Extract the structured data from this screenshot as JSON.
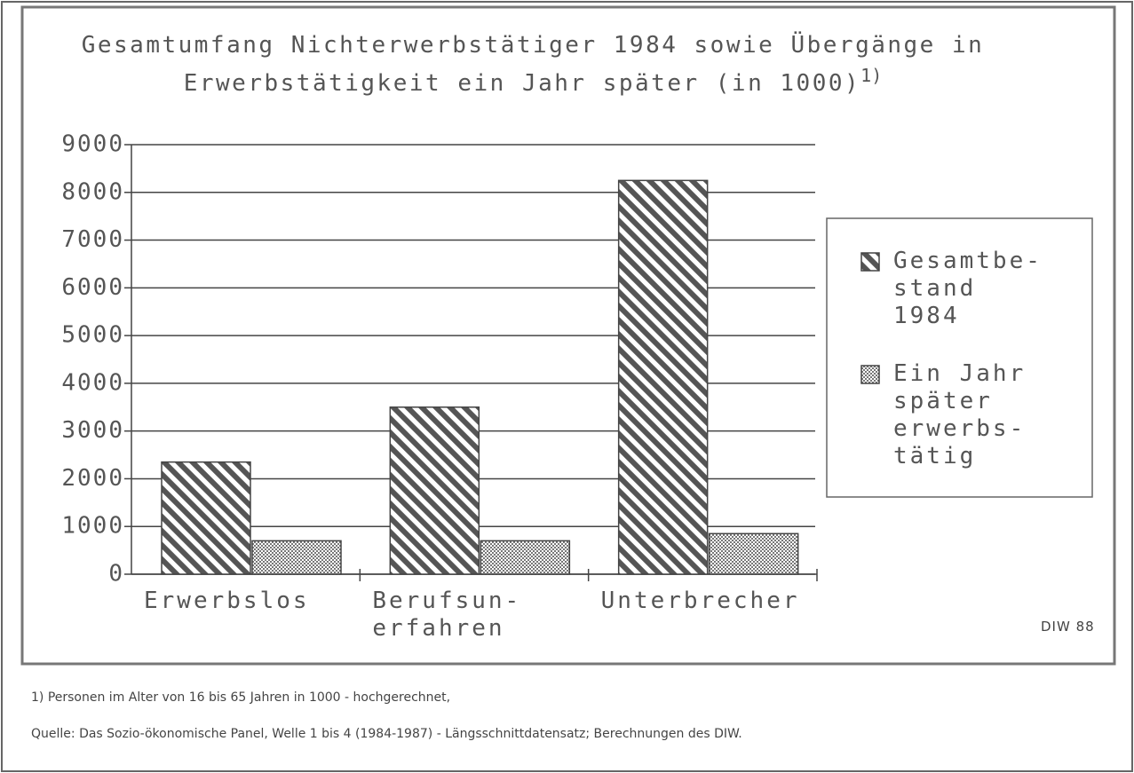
{
  "chart_data": {
    "type": "bar",
    "title": "Gesamtumfang Nichterwerbstätiger 1984 sowie Übergänge in\nErwerbstätigkeit ein Jahr später (in 1000)",
    "title_note": "1)",
    "categories": [
      "Erwerbslos",
      "Berufsun-\nerfahren",
      "Unterbrecher"
    ],
    "series": [
      {
        "name": "Gesamtbe-\nstand\n1984",
        "color": "#555555",
        "pattern": "stripes",
        "values": [
          2350,
          3500,
          8250
        ]
      },
      {
        "name": "Ein Jahr\nspäter\nerwerbs-\ntätig",
        "color": "#777777",
        "pattern": "crosshatch",
        "values": [
          700,
          700,
          850
        ]
      }
    ],
    "ylim": [
      0,
      9000
    ],
    "yticks": [
      0,
      1000,
      2000,
      3000,
      4000,
      5000,
      6000,
      7000,
      8000,
      9000
    ],
    "grid": true,
    "legend": "right",
    "credit": "DIW 88",
    "footnote": "1) Personen im Alter von 16 bis 65 Jahren in 1000 - hochgerechnet,",
    "source": "Quelle: Das Sozio-ökonomische Panel, Welle 1 bis 4 (1984-1987) - Längsschnittdatensatz; Berechnungen des DIW."
  }
}
